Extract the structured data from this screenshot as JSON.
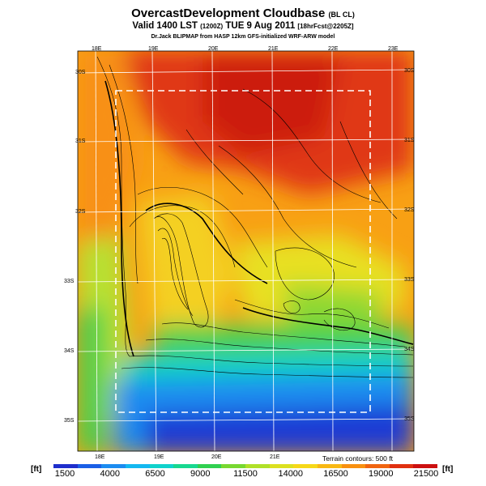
{
  "title": {
    "main": "OvercastDevelopment Cloudbase",
    "suffix": "(BL CL)"
  },
  "valid": {
    "prefix": "Valid 1400 LST",
    "utc": "(1200Z)",
    "date": "TUE 9 Aug 2011",
    "forecast": "[18hrFcst@2205Z]"
  },
  "credit": "Dr.Jack BLIPMAP from HASP 12km GFS-initialized WRF-ARW model",
  "terrain_note": "Terrain contours: 500 ft",
  "unit": "[ft]",
  "colorbar": {
    "colors": [
      "#1e2ecc",
      "#1a5fe6",
      "#1c8cf0",
      "#14b8f0",
      "#10d2cc",
      "#18d890",
      "#30d050",
      "#78d830",
      "#b0e028",
      "#dce020",
      "#f6d818",
      "#f8b814",
      "#f89010",
      "#f06410",
      "#e03010",
      "#cc1010"
    ],
    "tick_labels": [
      "1500",
      "4000",
      "6500",
      "9000",
      "11500",
      "14000",
      "16500",
      "19000",
      "21500"
    ]
  },
  "map": {
    "lon_labels_top": [
      "18E",
      "19E",
      "20E",
      "21E",
      "22E",
      "23E"
    ],
    "lon_labels_bottom": [
      "18E",
      "19E",
      "20E",
      "21E"
    ],
    "lat_labels_left": [
      "30S",
      "31S",
      "32S",
      "33S",
      "34S",
      "35S"
    ],
    "lat_labels_right": [
      "30S",
      "31S",
      "32S",
      "33S",
      "34S",
      "35S"
    ]
  }
}
